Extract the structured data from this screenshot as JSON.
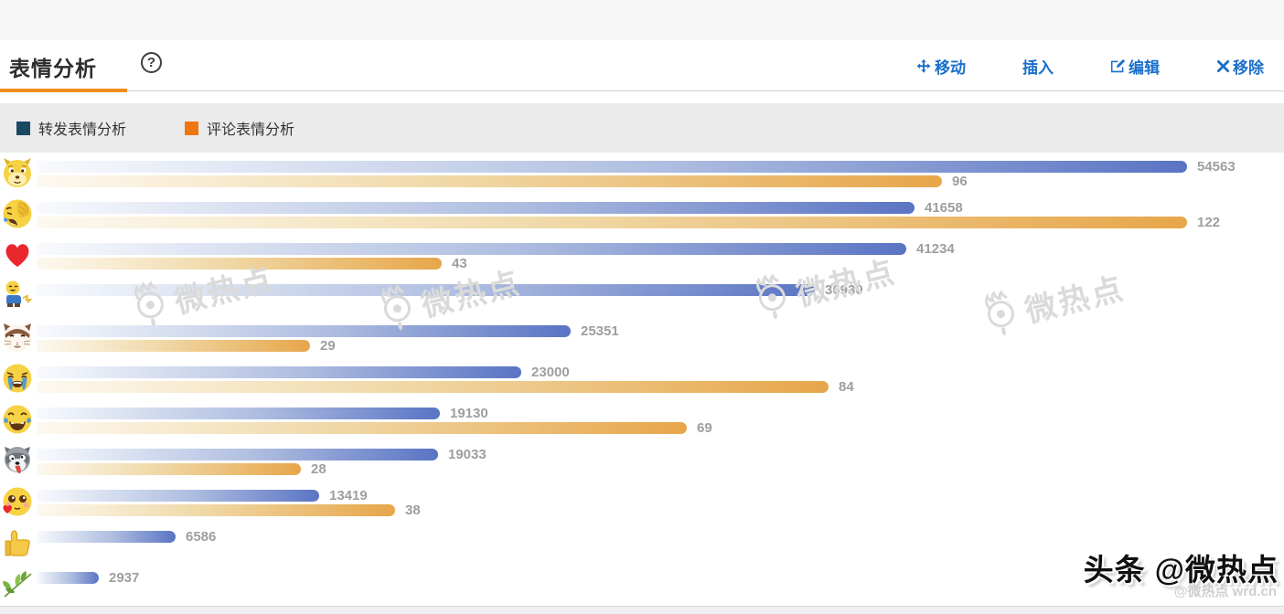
{
  "header": {
    "title": "表情分析",
    "help": "?"
  },
  "actions": {
    "move": "移动",
    "insert": "插入",
    "edit": "编辑",
    "remove": "移除"
  },
  "legend": [
    {
      "label": "转发表情分析",
      "color": "#1a4a63"
    },
    {
      "label": "评论表情分析",
      "color": "#f0750f"
    }
  ],
  "watermark": {
    "text": "微热点"
  },
  "brand": {
    "main": "头条 @微热点",
    "sub": "@微热点 wrd.cn"
  },
  "chart_data": {
    "type": "bar",
    "orientation": "horizontal",
    "title": "表情分析",
    "legend_position": "top-left",
    "series_names": [
      "转发表情分析",
      "评论表情分析"
    ],
    "repost_color_end": "#5a74c4",
    "comment_color_end": "#e7a64a",
    "repost_max": 54563,
    "comment_max": 122,
    "rows": [
      {
        "emoji": "doge",
        "repost": 54563,
        "comment": 96
      },
      {
        "emoji": "facepalm-laugh",
        "repost": 41658,
        "comment": 122
      },
      {
        "emoji": "red-heart",
        "repost": 41234,
        "comment": 43
      },
      {
        "emoji": "laughing-boy",
        "repost": 36930,
        "comment": null
      },
      {
        "emoji": "cat",
        "repost": 25351,
        "comment": 29
      },
      {
        "emoji": "loudly-crying",
        "repost": 23000,
        "comment": 84
      },
      {
        "emoji": "tears-of-joy",
        "repost": 19130,
        "comment": 69
      },
      {
        "emoji": "husky",
        "repost": 19033,
        "comment": 28
      },
      {
        "emoji": "blush-heart",
        "repost": 13419,
        "comment": 38
      },
      {
        "emoji": "thumbs-up",
        "repost": 6586,
        "comment": null
      },
      {
        "emoji": "leaves",
        "repost": 2937,
        "comment": null
      }
    ]
  }
}
